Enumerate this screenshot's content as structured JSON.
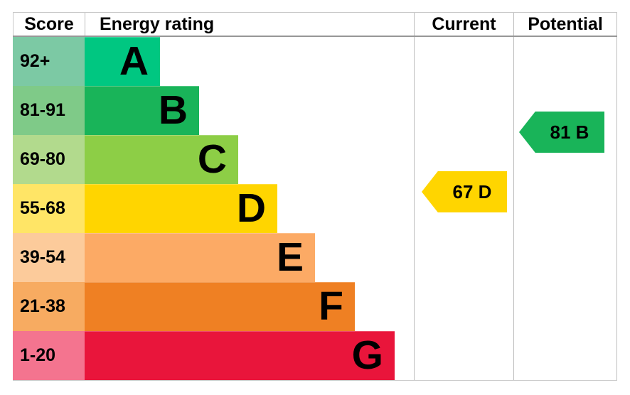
{
  "header": {
    "score": "Score",
    "energy_rating": "Energy rating",
    "current": "Current",
    "potential": "Potential"
  },
  "chart_data": {
    "type": "bar",
    "bands": [
      {
        "letter": "A",
        "score_range": "92+",
        "bar_color": "#00c781",
        "score_bg": "#7cc9a4"
      },
      {
        "letter": "B",
        "score_range": "81-91",
        "bar_color": "#19b459",
        "score_bg": "#7fca88"
      },
      {
        "letter": "C",
        "score_range": "69-80",
        "bar_color": "#8dce46",
        "score_bg": "#b2da8d"
      },
      {
        "letter": "D",
        "score_range": "55-68",
        "bar_color": "#ffd500",
        "score_bg": "#ffe566"
      },
      {
        "letter": "E",
        "score_range": "39-54",
        "bar_color": "#fcaa65",
        "score_bg": "#fccb9b"
      },
      {
        "letter": "F",
        "score_range": "21-38",
        "bar_color": "#ef8023",
        "score_bg": "#f7ab61"
      },
      {
        "letter": "G",
        "score_range": "1-20",
        "bar_color": "#e9153b",
        "score_bg": "#f4748f"
      }
    ],
    "current": {
      "score": 67,
      "band": "D",
      "label": "67 D",
      "color": "#ffd500"
    },
    "potential": {
      "score": 81,
      "band": "B",
      "label": "81 B",
      "color": "#19b459"
    }
  }
}
